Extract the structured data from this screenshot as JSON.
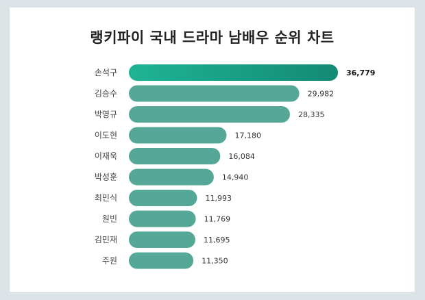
{
  "chart_data": {
    "type": "bar",
    "orientation": "horizontal",
    "title": "랭키파이 국내 드라마 남배우 순위 차트",
    "categories": [
      "손석구",
      "김승수",
      "박영규",
      "이도현",
      "이재욱",
      "박성훈",
      "최민식",
      "원빈",
      "김민재",
      "주원"
    ],
    "values": [
      36779,
      29982,
      28335,
      17180,
      16084,
      14940,
      11993,
      11769,
      11695,
      11350
    ],
    "value_labels": [
      "36,779",
      "29,982",
      "28,335",
      "17,180",
      "16,084",
      "14,940",
      "11,993",
      "11,769",
      "11,695",
      "11,350"
    ],
    "xlabel": "",
    "ylabel": "",
    "grid": false,
    "legend": "none",
    "colors": {
      "bar": "#55a897",
      "top_bar_start": "#1fb494",
      "top_bar_end": "#138a74",
      "background": "#dde4e8",
      "card": "#ffffff"
    }
  }
}
